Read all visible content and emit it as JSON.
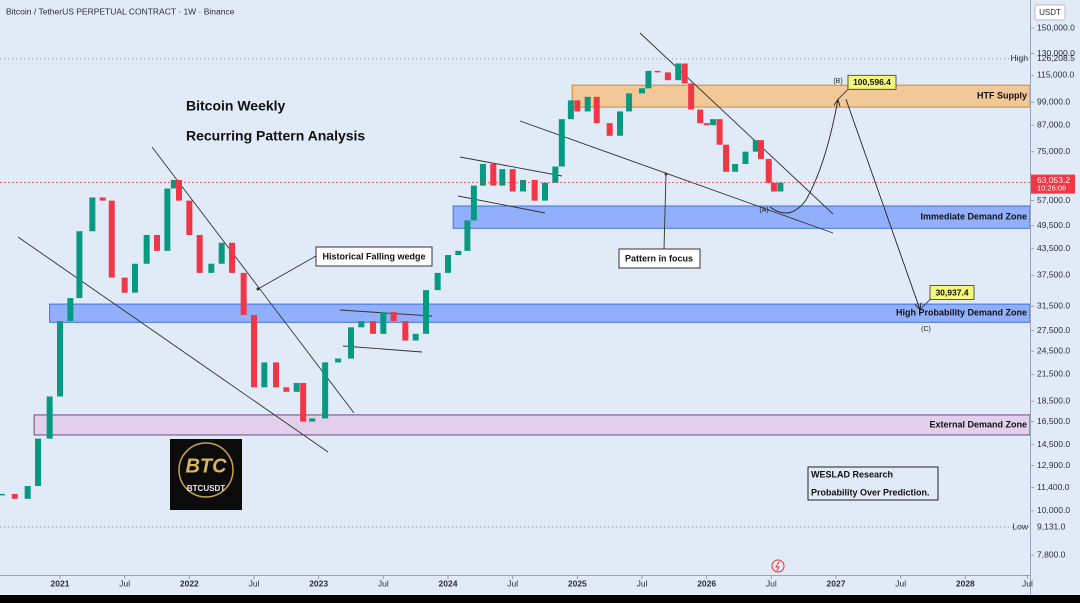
{
  "header": {
    "symbol": "Bitcoin / TetherUS PERPETUAL CONTRACT · 1W · Binance",
    "currency": "USDT"
  },
  "chart_data": {
    "type": "candlestick",
    "title": "Bitcoin Weekly",
    "subtitle": "Recurring Pattern Analysis",
    "x": [
      2020.55,
      2020.65,
      2020.75,
      2020.83,
      2020.92,
      2021.0,
      2021.08,
      2021.15,
      2021.25,
      2021.33,
      2021.4,
      2021.5,
      2021.58,
      2021.67,
      2021.75,
      2021.83,
      2021.88,
      2021.92,
      2022.0,
      2022.08,
      2022.17,
      2022.25,
      2022.33,
      2022.42,
      2022.5,
      2022.58,
      2022.67,
      2022.75,
      2022.83,
      2022.88,
      2022.95,
      2023.05,
      2023.15,
      2023.25,
      2023.33,
      2023.42,
      2023.5,
      2023.58,
      2023.67,
      2023.75,
      2023.83,
      2023.92,
      2024.0,
      2024.08,
      2024.15,
      2024.2,
      2024.27,
      2024.35,
      2024.42,
      2024.5,
      2024.58,
      2024.67,
      2024.75,
      2024.83,
      2024.88,
      2024.95,
      2025.0,
      2025.08,
      2025.15,
      2025.25,
      2025.33,
      2025.4,
      2025.5,
      2025.55,
      2025.62,
      2025.7,
      2025.78,
      2025.83,
      2025.88,
      2025.95,
      2026.0,
      2026.05,
      2026.1,
      2026.15,
      2026.22,
      2026.3,
      2026.38,
      2026.42,
      2026.48,
      2026.52,
      2026.57
    ],
    "values": [
      11000,
      10700,
      11500,
      15000,
      19000,
      29000,
      33000,
      48000,
      58000,
      57000,
      37000,
      34000,
      40000,
      47000,
      43000,
      61000,
      64000,
      57000,
      47000,
      38000,
      40000,
      45000,
      38000,
      30000,
      20000,
      23000,
      20000,
      19500,
      20500,
      16500,
      16800,
      23000,
      23500,
      28000,
      29000,
      27000,
      30500,
      29000,
      26000,
      27000,
      34500,
      38000,
      42000,
      43000,
      51000,
      62000,
      70000,
      62000,
      68000,
      60000,
      64000,
      57000,
      63000,
      69000,
      90000,
      100000,
      94000,
      102000,
      88000,
      82000,
      94000,
      104000,
      107000,
      118000,
      117000,
      112000,
      123000,
      110000,
      95000,
      88000,
      87000,
      90000,
      78000,
      67000,
      70000,
      75000,
      80000,
      72000,
      63000,
      60000,
      63053.2
    ],
    "up_color": "#089981",
    "down_color": "#f23645",
    "log_scale": true,
    "xlim": [
      2020.536,
      2028.5
    ],
    "xticks": [
      {
        "value": 2021,
        "label": "2021"
      },
      {
        "value": 2021.5,
        "label": "Jul"
      },
      {
        "value": 2022,
        "label": "2022"
      },
      {
        "value": 2022.5,
        "label": "Jul"
      },
      {
        "value": 2023,
        "label": "2023"
      },
      {
        "value": 2023.5,
        "label": "Jul"
      },
      {
        "value": 2024,
        "label": "2024"
      },
      {
        "value": 2024.5,
        "label": "Jul"
      },
      {
        "value": 2025,
        "label": "2025"
      },
      {
        "value": 2025.5,
        "label": "Jul"
      },
      {
        "value": 2026,
        "label": "2026"
      },
      {
        "value": 2026.5,
        "label": "Jul"
      },
      {
        "value": 2027,
        "label": "2027"
      },
      {
        "value": 2027.5,
        "label": "Jul"
      },
      {
        "value": 2028,
        "label": "2028"
      },
      {
        "value": 2028.48,
        "label": "Jul"
      }
    ],
    "ylim": [
      6980,
      175600
    ],
    "yticks": [
      {
        "value": 150000,
        "label": "150,000.0"
      },
      {
        "value": 130000,
        "label": "130,000.0"
      },
      {
        "value": 115000,
        "label": "115,000.0"
      },
      {
        "value": 99000,
        "label": "99,000.0"
      },
      {
        "value": 87000,
        "label": "87,000.0"
      },
      {
        "value": 75000,
        "label": "75,000.0"
      },
      {
        "value": 57000,
        "label": "57,000.0"
      },
      {
        "value": 49500,
        "label": "49,500.0"
      },
      {
        "value": 43500,
        "label": "43,500.0"
      },
      {
        "value": 37500,
        "label": "37,500.0"
      },
      {
        "value": 31500,
        "label": "31,500.0"
      },
      {
        "value": 27500,
        "label": "27,500.0"
      },
      {
        "value": 24500,
        "label": "24,500.0"
      },
      {
        "value": 21500,
        "label": "21,500.0"
      },
      {
        "value": 18500,
        "label": "18,500.0"
      },
      {
        "value": 16500,
        "label": "16,500.0"
      },
      {
        "value": 14500,
        "label": "14,500.0"
      },
      {
        "value": 12900,
        "label": "12,900.0"
      },
      {
        "value": 11400,
        "label": "11,400.0"
      },
      {
        "value": 10000,
        "label": "10,000.0"
      },
      {
        "value": 7800,
        "label": "7,800.0"
      }
    ],
    "markers": [
      {
        "name": "High",
        "value": 126208.5,
        "value_label": "126,208.5"
      },
      {
        "name": "Low",
        "value": 9131,
        "value_label": "9,131.0"
      }
    ],
    "last_price": {
      "value": 63053.2,
      "value_label": "63,053.2",
      "countdown": "10:26:06"
    },
    "zones": [
      {
        "name": "HTF Supply",
        "range": [
          96300,
          108900
        ],
        "start": 2024.96,
        "color": "#f4c48e",
        "border": "#c98a3a"
      },
      {
        "name": "Immediate Demand Zone",
        "range": [
          48800,
          55300
        ],
        "start": 2024.04,
        "color": "#88a9fb",
        "border": "#3f6fe8"
      },
      {
        "name": "High Probability Demand Zone",
        "range": [
          28800,
          31900
        ],
        "start": 2020.92,
        "color": "#88a9fb",
        "border": "#3f6fe8"
      },
      {
        "name": "External Demand Zone",
        "range": [
          15310,
          17130
        ],
        "start": 2020.8,
        "color": "#e2cdea",
        "border": "#6a4a7a"
      }
    ],
    "callouts": [
      {
        "value": 100596.4,
        "label": "100,596.4"
      },
      {
        "value": 30937.4,
        "label": "30,937.4"
      }
    ],
    "annotations": [
      "Historical Falling wedge",
      "Pattern in focus",
      "(A)",
      "(B)",
      "(C)"
    ],
    "note": [
      "WESLAD Research",
      "Probability Over Prediction."
    ],
    "logo": {
      "title": "BTC",
      "subtitle": "BTCUSDT"
    }
  }
}
